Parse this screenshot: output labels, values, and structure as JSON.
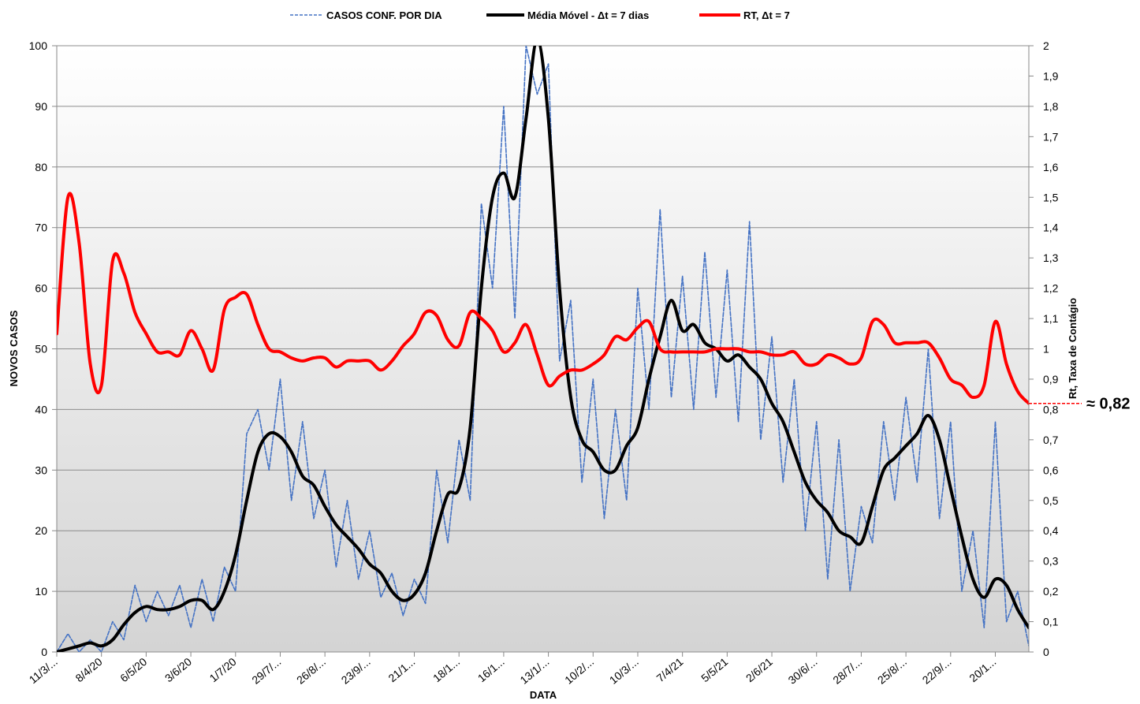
{
  "chart_data": {
    "type": "line",
    "xlabel": "DATA",
    "ylabel": "NOVOS CASOS",
    "y2label": "Rt, Taxa de Contágio",
    "legend": "top",
    "grid": true,
    "categories": [
      "11/3/...",
      null,
      null,
      null,
      "8/4/20",
      null,
      null,
      null,
      "6/5/20",
      null,
      null,
      null,
      "3/6/20",
      null,
      null,
      null,
      "1/7/20",
      null,
      null,
      null,
      "29/7/...",
      null,
      null,
      null,
      "26/8/...",
      null,
      null,
      null,
      "23/9/...",
      null,
      null,
      null,
      "21/1...",
      null,
      null,
      null,
      "18/1...",
      null,
      null,
      null,
      "16/1...",
      null,
      null,
      null,
      "13/1/...",
      null,
      null,
      null,
      "10/2/...",
      null,
      null,
      null,
      "10/3/...",
      null,
      null,
      null,
      "7/4/21",
      null,
      null,
      null,
      "5/5/21",
      null,
      null,
      null,
      "2/6/21",
      null,
      null,
      null,
      "30/6/...",
      null,
      null,
      null,
      "28/7/...",
      null,
      null,
      null,
      "25/8/...",
      null,
      null,
      null,
      "22/9/...",
      null,
      null,
      null,
      "20/1...",
      null,
      null,
      null
    ],
    "series": [
      {
        "name": "CASOS CONF. POR DIA",
        "color": "#4472c4",
        "style": "dashed",
        "values": [
          0,
          3,
          0,
          2,
          0,
          5,
          2,
          11,
          5,
          10,
          6,
          11,
          4,
          12,
          5,
          14,
          10,
          36,
          40,
          30,
          45,
          25,
          38,
          22,
          30,
          14,
          25,
          12,
          20,
          9,
          13,
          6,
          12,
          8,
          30,
          18,
          35,
          25,
          74,
          60,
          90,
          55,
          100,
          92,
          97,
          48,
          58,
          28,
          45,
          22,
          40,
          25,
          60,
          40,
          73,
          42,
          62,
          40,
          66,
          42,
          63,
          38,
          71,
          35,
          52,
          28,
          45,
          20,
          38,
          12,
          35,
          10,
          24,
          18,
          38,
          25,
          42,
          28,
          50,
          22,
          38,
          10,
          20,
          4,
          38,
          5,
          10,
          1
        ]
      },
      {
        "name": "Média Móvel - Δt = 7 dias",
        "color": "#000000",
        "style": "solid",
        "values": [
          0,
          0.5,
          1,
          1.5,
          1,
          2,
          4.5,
          6.5,
          7.5,
          7,
          7,
          7.5,
          8.5,
          8.5,
          7,
          10,
          16,
          25,
          33,
          36,
          35.5,
          33,
          29,
          27.5,
          24,
          21,
          19,
          17,
          14.5,
          13,
          10,
          8.5,
          9.5,
          13,
          20,
          26,
          27,
          37,
          60,
          75,
          79,
          75,
          88,
          101,
          88,
          60,
          42,
          35,
          33,
          30,
          30,
          34,
          37,
          45,
          52,
          58,
          53,
          54,
          51,
          50,
          48,
          49,
          47,
          45,
          41,
          38,
          33,
          28,
          25,
          23,
          20,
          19,
          18,
          24,
          30,
          32,
          34,
          36,
          39,
          35,
          27,
          19,
          12,
          9,
          12,
          11,
          7,
          4
        ]
      },
      {
        "name": "RT, Δt = 7",
        "color": "#ff0000",
        "style": "solid",
        "axis": "y2",
        "values": [
          1.05,
          1.5,
          1.35,
          0.95,
          0.88,
          1.29,
          1.25,
          1.12,
          1.05,
          0.99,
          0.99,
          0.98,
          1.06,
          1.0,
          0.93,
          1.13,
          1.17,
          1.18,
          1.08,
          1.0,
          0.99,
          0.97,
          0.96,
          0.97,
          0.97,
          0.94,
          0.96,
          0.96,
          0.96,
          0.93,
          0.96,
          1.01,
          1.05,
          1.12,
          1.11,
          1.03,
          1.01,
          1.12,
          1.1,
          1.06,
          0.99,
          1.02,
          1.08,
          0.98,
          0.88,
          0.91,
          0.93,
          0.93,
          0.95,
          0.98,
          1.04,
          1.03,
          1.07,
          1.09,
          1.0,
          0.99,
          0.99,
          0.99,
          0.99,
          1.0,
          1.0,
          1.0,
          0.99,
          0.99,
          0.98,
          0.98,
          0.99,
          0.95,
          0.95,
          0.98,
          0.97,
          0.95,
          0.97,
          1.09,
          1.08,
          1.02,
          1.02,
          1.02,
          1.02,
          0.97,
          0.9,
          0.88,
          0.84,
          0.88,
          1.09,
          0.95,
          0.86,
          0.82
        ]
      }
    ],
    "ylim": [
      0,
      100
    ],
    "yticks": [
      0,
      10,
      20,
      30,
      40,
      50,
      60,
      70,
      80,
      90,
      100
    ],
    "y2lim": [
      0,
      2
    ],
    "y2ticks": [
      0,
      {
        "value": 0.1,
        "label": "0,1"
      },
      {
        "value": 0.2,
        "label": "0,2"
      },
      {
        "value": 0.3,
        "label": "0,3"
      },
      {
        "value": 0.4,
        "label": "0,4"
      },
      {
        "value": 0.5,
        "label": "0,5"
      },
      {
        "value": 0.6,
        "label": "0,6"
      },
      {
        "value": 0.7,
        "label": "0,7"
      },
      {
        "value": 0.8,
        "label": "0,8"
      },
      {
        "value": 0.9,
        "label": "0,9"
      },
      1,
      {
        "value": 1.1,
        "label": "1,1"
      },
      {
        "value": 1.2,
        "label": "1,2"
      },
      {
        "value": 1.3,
        "label": "1,3"
      },
      {
        "value": 1.4,
        "label": "1,4"
      },
      {
        "value": 1.5,
        "label": "1,5"
      },
      {
        "value": 1.6,
        "label": "1,6"
      },
      {
        "value": 1.7,
        "label": "1,7"
      },
      {
        "value": 1.8,
        "label": "1,8"
      },
      {
        "value": 1.9,
        "label": "1,9"
      },
      2
    ],
    "annotation": {
      "text": "≈ 0,82",
      "color": "#ff0000"
    }
  }
}
